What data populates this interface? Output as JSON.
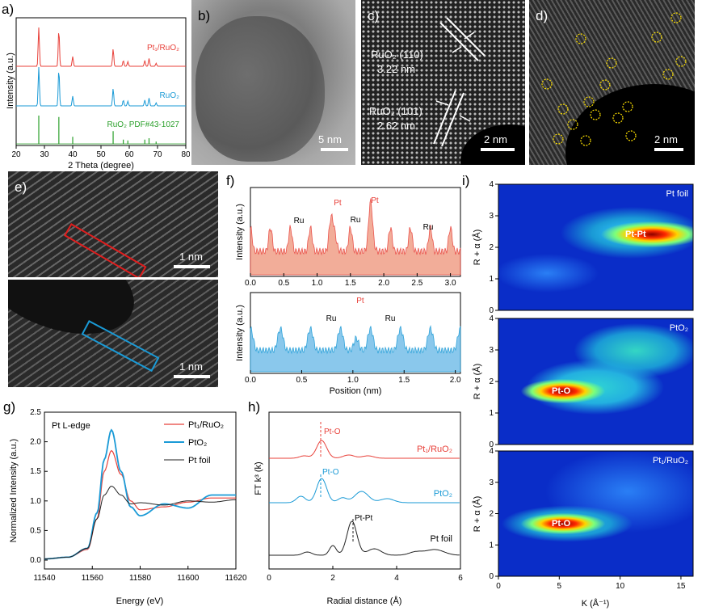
{
  "panels": {
    "a": {
      "label": "a)",
      "ylabel": "Intensity (a.u.)",
      "xlabel": "2 Theta (degree)",
      "xticks": [
        "20",
        "30",
        "40",
        "50",
        "60",
        "70",
        "80"
      ],
      "legend": [
        "Pt₁/RuO₂",
        "RuO₂",
        "RuO₂ PDF#43-1027"
      ],
      "colors": [
        "#e8413a",
        "#1a9ad6",
        "#2ca02c"
      ]
    },
    "b": {
      "label": "b)",
      "scale": "5 nm"
    },
    "c": {
      "label": "c)",
      "scale": "2 nm",
      "ann1": "RuO₂ (110)",
      "ann1v": "3.22 nm",
      "ann2": "RuO₂ (101)",
      "ann2v": "2.62 nm"
    },
    "d": {
      "label": "d)",
      "scale": "2 nm"
    },
    "e": {
      "label": "e)",
      "scale1": "1 nm",
      "scale2": "1 nm"
    },
    "f": {
      "label": "f)",
      "ylabel": "Intensity (a.u.)",
      "xlabel": "Position (nm)",
      "top_xticks": [
        "0.0",
        "0.5",
        "1.0",
        "1.5",
        "2.0",
        "2.5",
        "3.0"
      ],
      "bot_xticks": [
        "0.0",
        "0.5",
        "1.0",
        "1.5",
        "2.0"
      ],
      "top_labels": [
        "Ru",
        "Pt",
        "Ru",
        "Pt",
        "Ru"
      ],
      "bot_labels": [
        "Ru",
        "Pt",
        "Ru"
      ]
    },
    "g": {
      "label": "g)",
      "title": "Pt L-edge",
      "ylabel": "Normalized Intensity (a.u.)",
      "xlabel": "Energy (eV)",
      "xticks": [
        "11540",
        "11560",
        "11580",
        "11600",
        "11620"
      ],
      "yticks": [
        "0.0",
        "0.5",
        "1.0",
        "1.5",
        "2.0",
        "2.5"
      ],
      "legend": [
        "Pt₁/RuO₂",
        "PtO₂",
        "Pt foil"
      ]
    },
    "h": {
      "label": "h)",
      "ylabel": "FT k³  (k)",
      "xlabel": "Radial distance (Å)",
      "xticks": [
        "0",
        "2",
        "4",
        "6"
      ],
      "labels": [
        "Pt₁/RuO₂",
        "PtO₂",
        "Pt foil"
      ],
      "peak_labels": [
        "Pt-O",
        "Pt-O",
        "Pt-Pt"
      ]
    },
    "i": {
      "label": "i)",
      "ylabel": "R + α (Å)",
      "xlabel": "K (Å⁻¹)",
      "xticks": [
        "0",
        "5",
        "10",
        "15"
      ],
      "yticks": [
        "0",
        "1",
        "2",
        "3",
        "4"
      ],
      "maps": [
        "Pt foil",
        "PtO₂",
        "Pt₁/RuO₂"
      ],
      "peaks": [
        "Pt-Pt",
        "Pt-O",
        "Pt-O"
      ]
    }
  },
  "chart_data": [
    {
      "type": "line",
      "title": "",
      "xlabel": "2 Theta (degree)",
      "ylabel": "Intensity (a.u.)",
      "xlim": [
        20,
        80
      ],
      "series": [
        {
          "name": "Pt₁/RuO₂",
          "peaks_x": [
            28.0,
            35.1,
            40.0,
            54.3,
            57.9,
            59.5,
            65.5,
            67.0,
            69.5
          ]
        },
        {
          "name": "RuO₂",
          "peaks_x": [
            28.0,
            35.1,
            40.0,
            54.3,
            57.9,
            59.5,
            65.5,
            67.0,
            69.5
          ]
        },
        {
          "name": "RuO₂ PDF#43-1027",
          "peaks_x": [
            28.0,
            35.1,
            40.0,
            54.3,
            57.9,
            59.5,
            65.5,
            67.0,
            69.5
          ]
        }
      ]
    },
    {
      "type": "line",
      "title": "",
      "xlabel": "Energy (eV)",
      "ylabel": "Normalized Intensity (a.u.)",
      "xlim": [
        11540,
        11620
      ],
      "ylim": [
        -0.15,
        2.5
      ],
      "series": [
        {
          "name": "Pt₁/RuO₂",
          "x": [
            11540,
            11550,
            11558,
            11562,
            11565,
            11568,
            11572,
            11576,
            11580,
            11590,
            11600,
            11610,
            11620
          ],
          "y": [
            0.02,
            0.05,
            0.18,
            0.7,
            1.5,
            1.85,
            1.45,
            1.0,
            0.85,
            0.9,
            0.98,
            1.05,
            1.05
          ]
        },
        {
          "name": "PtO₂",
          "x": [
            11540,
            11550,
            11558,
            11562,
            11565,
            11568,
            11572,
            11576,
            11580,
            11590,
            11600,
            11610,
            11620
          ],
          "y": [
            0.02,
            0.05,
            0.2,
            0.8,
            1.7,
            2.2,
            1.5,
            0.9,
            0.75,
            0.95,
            0.88,
            1.1,
            1.1
          ]
        },
        {
          "name": "Pt foil",
          "x": [
            11540,
            11550,
            11558,
            11562,
            11565,
            11568,
            11572,
            11576,
            11580,
            11590,
            11600,
            11610,
            11620
          ],
          "y": [
            0.02,
            0.05,
            0.2,
            0.7,
            1.1,
            1.25,
            1.1,
            0.95,
            0.97,
            0.93,
            1.0,
            0.98,
            1.02
          ]
        }
      ]
    },
    {
      "type": "line",
      "title": "",
      "xlabel": "Radial distance (Å)",
      "ylabel": "FT k³  (k)",
      "xlim": [
        0,
        6
      ],
      "series": [
        {
          "name": "Pt₁/RuO₂",
          "peak_x": 1.65
        },
        {
          "name": "PtO₂",
          "peak_x": 1.65
        },
        {
          "name": "Pt foil",
          "peak_x": 2.6
        }
      ]
    }
  ]
}
